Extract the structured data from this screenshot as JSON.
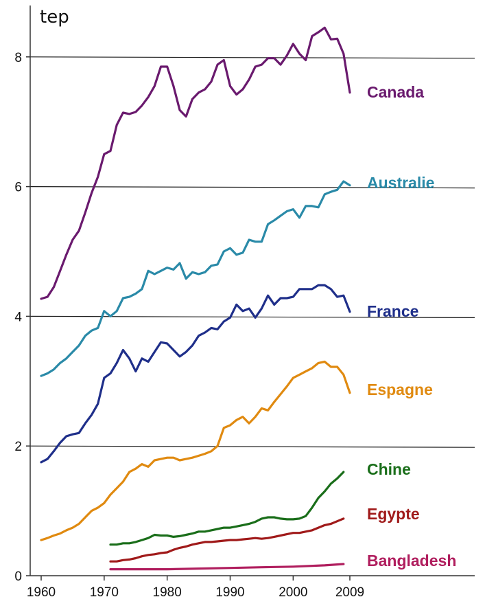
{
  "chart_data": {
    "type": "line",
    "ylabel": "tep",
    "ylim": [
      0,
      9
    ],
    "yticks": [
      "0",
      "2",
      "4",
      "6",
      "8"
    ],
    "xlim": [
      1960,
      2009
    ],
    "xticks": [
      "1960",
      "1970",
      "1980",
      "1990",
      "2000",
      "2009"
    ],
    "grid": "horizontal",
    "series": [
      {
        "name": "Canada",
        "color": "#6a1a6e",
        "points": [
          [
            1960,
            4.27
          ],
          [
            1961,
            4.3
          ],
          [
            1962,
            4.45
          ],
          [
            1963,
            4.7
          ],
          [
            1964,
            4.95
          ],
          [
            1965,
            5.18
          ],
          [
            1966,
            5.32
          ],
          [
            1967,
            5.6
          ],
          [
            1968,
            5.9
          ],
          [
            1969,
            6.15
          ],
          [
            1970,
            6.5
          ],
          [
            1971,
            6.55
          ],
          [
            1972,
            6.95
          ],
          [
            1973,
            7.14
          ],
          [
            1974,
            7.12
          ],
          [
            1975,
            7.15
          ],
          [
            1976,
            7.25
          ],
          [
            1977,
            7.38
          ],
          [
            1978,
            7.55
          ],
          [
            1979,
            7.85
          ],
          [
            1980,
            7.85
          ],
          [
            1981,
            7.55
          ],
          [
            1982,
            7.18
          ],
          [
            1983,
            7.08
          ],
          [
            1984,
            7.35
          ],
          [
            1985,
            7.45
          ],
          [
            1986,
            7.5
          ],
          [
            1987,
            7.62
          ],
          [
            1988,
            7.88
          ],
          [
            1989,
            7.95
          ],
          [
            1990,
            7.55
          ],
          [
            1991,
            7.42
          ],
          [
            1992,
            7.5
          ],
          [
            1993,
            7.65
          ],
          [
            1994,
            7.85
          ],
          [
            1995,
            7.88
          ],
          [
            1996,
            7.98
          ],
          [
            1997,
            7.98
          ],
          [
            1998,
            7.88
          ],
          [
            1999,
            8.02
          ],
          [
            2000,
            8.2
          ],
          [
            2001,
            8.05
          ],
          [
            2002,
            7.95
          ],
          [
            2003,
            8.32
          ],
          [
            2004,
            8.38
          ],
          [
            2005,
            8.45
          ],
          [
            2006,
            8.27
          ],
          [
            2007,
            8.28
          ],
          [
            2008,
            8.05
          ],
          [
            2009,
            7.45
          ]
        ]
      },
      {
        "name": "Australie",
        "color": "#2a8aa8",
        "points": [
          [
            1960,
            3.08
          ],
          [
            1961,
            3.12
          ],
          [
            1962,
            3.18
          ],
          [
            1963,
            3.28
          ],
          [
            1964,
            3.35
          ],
          [
            1965,
            3.45
          ],
          [
            1966,
            3.55
          ],
          [
            1967,
            3.7
          ],
          [
            1968,
            3.78
          ],
          [
            1969,
            3.82
          ],
          [
            1970,
            4.08
          ],
          [
            1971,
            4.0
          ],
          [
            1972,
            4.08
          ],
          [
            1973,
            4.28
          ],
          [
            1974,
            4.3
          ],
          [
            1975,
            4.35
          ],
          [
            1976,
            4.42
          ],
          [
            1977,
            4.7
          ],
          [
            1978,
            4.65
          ],
          [
            1979,
            4.7
          ],
          [
            1980,
            4.75
          ],
          [
            1981,
            4.72
          ],
          [
            1982,
            4.82
          ],
          [
            1983,
            4.58
          ],
          [
            1984,
            4.68
          ],
          [
            1985,
            4.65
          ],
          [
            1986,
            4.68
          ],
          [
            1987,
            4.78
          ],
          [
            1988,
            4.8
          ],
          [
            1989,
            5.0
          ],
          [
            1990,
            5.05
          ],
          [
            1991,
            4.95
          ],
          [
            1992,
            4.98
          ],
          [
            1993,
            5.18
          ],
          [
            1994,
            5.15
          ],
          [
            1995,
            5.15
          ],
          [
            1996,
            5.42
          ],
          [
            1997,
            5.48
          ],
          [
            1998,
            5.55
          ],
          [
            1999,
            5.62
          ],
          [
            2000,
            5.65
          ],
          [
            2001,
            5.52
          ],
          [
            2002,
            5.7
          ],
          [
            2003,
            5.7
          ],
          [
            2004,
            5.68
          ],
          [
            2005,
            5.88
          ],
          [
            2006,
            5.92
          ],
          [
            2007,
            5.95
          ],
          [
            2008,
            6.08
          ],
          [
            2009,
            6.02
          ]
        ]
      },
      {
        "name": "France",
        "color": "#1f2f8a",
        "points": [
          [
            1960,
            1.75
          ],
          [
            1961,
            1.8
          ],
          [
            1962,
            1.92
          ],
          [
            1963,
            2.05
          ],
          [
            1964,
            2.15
          ],
          [
            1965,
            2.18
          ],
          [
            1966,
            2.2
          ],
          [
            1967,
            2.35
          ],
          [
            1968,
            2.48
          ],
          [
            1969,
            2.65
          ],
          [
            1970,
            3.05
          ],
          [
            1971,
            3.12
          ],
          [
            1972,
            3.28
          ],
          [
            1973,
            3.48
          ],
          [
            1974,
            3.35
          ],
          [
            1975,
            3.15
          ],
          [
            1976,
            3.35
          ],
          [
            1977,
            3.3
          ],
          [
            1978,
            3.45
          ],
          [
            1979,
            3.6
          ],
          [
            1980,
            3.58
          ],
          [
            1981,
            3.48
          ],
          [
            1982,
            3.38
          ],
          [
            1983,
            3.45
          ],
          [
            1984,
            3.55
          ],
          [
            1985,
            3.7
          ],
          [
            1986,
            3.75
          ],
          [
            1987,
            3.82
          ],
          [
            1988,
            3.8
          ],
          [
            1989,
            3.92
          ],
          [
            1990,
            3.98
          ],
          [
            1991,
            4.18
          ],
          [
            1992,
            4.08
          ],
          [
            1993,
            4.12
          ],
          [
            1994,
            3.98
          ],
          [
            1995,
            4.12
          ],
          [
            1996,
            4.32
          ],
          [
            1997,
            4.18
          ],
          [
            1998,
            4.28
          ],
          [
            1999,
            4.28
          ],
          [
            2000,
            4.3
          ],
          [
            2001,
            4.42
          ],
          [
            2002,
            4.42
          ],
          [
            2003,
            4.42
          ],
          [
            2004,
            4.48
          ],
          [
            2005,
            4.48
          ],
          [
            2006,
            4.42
          ],
          [
            2007,
            4.3
          ],
          [
            2008,
            4.32
          ],
          [
            2009,
            4.07
          ]
        ]
      },
      {
        "name": "Espagne",
        "color": "#e08a10",
        "points": [
          [
            1960,
            0.55
          ],
          [
            1961,
            0.58
          ],
          [
            1962,
            0.62
          ],
          [
            1963,
            0.65
          ],
          [
            1964,
            0.7
          ],
          [
            1965,
            0.74
          ],
          [
            1966,
            0.8
          ],
          [
            1967,
            0.9
          ],
          [
            1968,
            1.0
          ],
          [
            1969,
            1.05
          ],
          [
            1970,
            1.12
          ],
          [
            1971,
            1.25
          ],
          [
            1972,
            1.35
          ],
          [
            1973,
            1.45
          ],
          [
            1974,
            1.6
          ],
          [
            1975,
            1.65
          ],
          [
            1976,
            1.72
          ],
          [
            1977,
            1.68
          ],
          [
            1978,
            1.78
          ],
          [
            1979,
            1.8
          ],
          [
            1980,
            1.82
          ],
          [
            1981,
            1.82
          ],
          [
            1982,
            1.78
          ],
          [
            1983,
            1.8
          ],
          [
            1984,
            1.82
          ],
          [
            1985,
            1.85
          ],
          [
            1986,
            1.88
          ],
          [
            1987,
            1.92
          ],
          [
            1988,
            2.0
          ],
          [
            1989,
            2.28
          ],
          [
            1990,
            2.32
          ],
          [
            1991,
            2.4
          ],
          [
            1992,
            2.45
          ],
          [
            1993,
            2.35
          ],
          [
            1994,
            2.45
          ],
          [
            1995,
            2.58
          ],
          [
            1996,
            2.55
          ],
          [
            1997,
            2.68
          ],
          [
            1998,
            2.8
          ],
          [
            1999,
            2.92
          ],
          [
            2000,
            3.05
          ],
          [
            2001,
            3.1
          ],
          [
            2002,
            3.15
          ],
          [
            2003,
            3.2
          ],
          [
            2004,
            3.28
          ],
          [
            2005,
            3.3
          ],
          [
            2006,
            3.22
          ],
          [
            2007,
            3.22
          ],
          [
            2008,
            3.1
          ],
          [
            2009,
            2.82
          ]
        ]
      },
      {
        "name": "Chine",
        "color": "#1a6e1a",
        "points": [
          [
            1971,
            0.48
          ],
          [
            1972,
            0.48
          ],
          [
            1973,
            0.5
          ],
          [
            1974,
            0.5
          ],
          [
            1975,
            0.52
          ],
          [
            1976,
            0.55
          ],
          [
            1977,
            0.58
          ],
          [
            1978,
            0.63
          ],
          [
            1979,
            0.62
          ],
          [
            1980,
            0.62
          ],
          [
            1981,
            0.6
          ],
          [
            1982,
            0.61
          ],
          [
            1983,
            0.63
          ],
          [
            1984,
            0.65
          ],
          [
            1985,
            0.68
          ],
          [
            1986,
            0.68
          ],
          [
            1987,
            0.7
          ],
          [
            1988,
            0.72
          ],
          [
            1989,
            0.74
          ],
          [
            1990,
            0.74
          ],
          [
            1991,
            0.76
          ],
          [
            1992,
            0.78
          ],
          [
            1993,
            0.8
          ],
          [
            1994,
            0.83
          ],
          [
            1995,
            0.88
          ],
          [
            1996,
            0.9
          ],
          [
            1997,
            0.9
          ],
          [
            1998,
            0.88
          ],
          [
            1999,
            0.87
          ],
          [
            2000,
            0.87
          ],
          [
            2001,
            0.88
          ],
          [
            2002,
            0.92
          ],
          [
            2003,
            1.05
          ],
          [
            2004,
            1.2
          ],
          [
            2005,
            1.3
          ],
          [
            2006,
            1.42
          ],
          [
            2007,
            1.5
          ],
          [
            2008,
            1.6
          ]
        ]
      },
      {
        "name": "Egypte",
        "color": "#a01a1a",
        "points": [
          [
            1971,
            0.22
          ],
          [
            1972,
            0.22
          ],
          [
            1973,
            0.24
          ],
          [
            1974,
            0.25
          ],
          [
            1975,
            0.27
          ],
          [
            1976,
            0.3
          ],
          [
            1977,
            0.32
          ],
          [
            1978,
            0.33
          ],
          [
            1979,
            0.35
          ],
          [
            1980,
            0.36
          ],
          [
            1981,
            0.4
          ],
          [
            1982,
            0.43
          ],
          [
            1983,
            0.45
          ],
          [
            1984,
            0.48
          ],
          [
            1985,
            0.5
          ],
          [
            1986,
            0.52
          ],
          [
            1987,
            0.52
          ],
          [
            1988,
            0.53
          ],
          [
            1989,
            0.54
          ],
          [
            1990,
            0.55
          ],
          [
            1991,
            0.55
          ],
          [
            1992,
            0.56
          ],
          [
            1993,
            0.57
          ],
          [
            1994,
            0.58
          ],
          [
            1995,
            0.57
          ],
          [
            1996,
            0.58
          ],
          [
            1997,
            0.6
          ],
          [
            1998,
            0.62
          ],
          [
            1999,
            0.64
          ],
          [
            2000,
            0.66
          ],
          [
            2001,
            0.66
          ],
          [
            2002,
            0.68
          ],
          [
            2003,
            0.7
          ],
          [
            2004,
            0.74
          ],
          [
            2005,
            0.78
          ],
          [
            2006,
            0.8
          ],
          [
            2007,
            0.84
          ],
          [
            2008,
            0.88
          ]
        ]
      },
      {
        "name": "Bangladesh",
        "color": "#b01e5e",
        "points": [
          [
            1971,
            0.1
          ],
          [
            1975,
            0.1
          ],
          [
            1980,
            0.1
          ],
          [
            1985,
            0.11
          ],
          [
            1990,
            0.12
          ],
          [
            1995,
            0.13
          ],
          [
            2000,
            0.14
          ],
          [
            2005,
            0.16
          ],
          [
            2008,
            0.18
          ]
        ]
      }
    ]
  }
}
